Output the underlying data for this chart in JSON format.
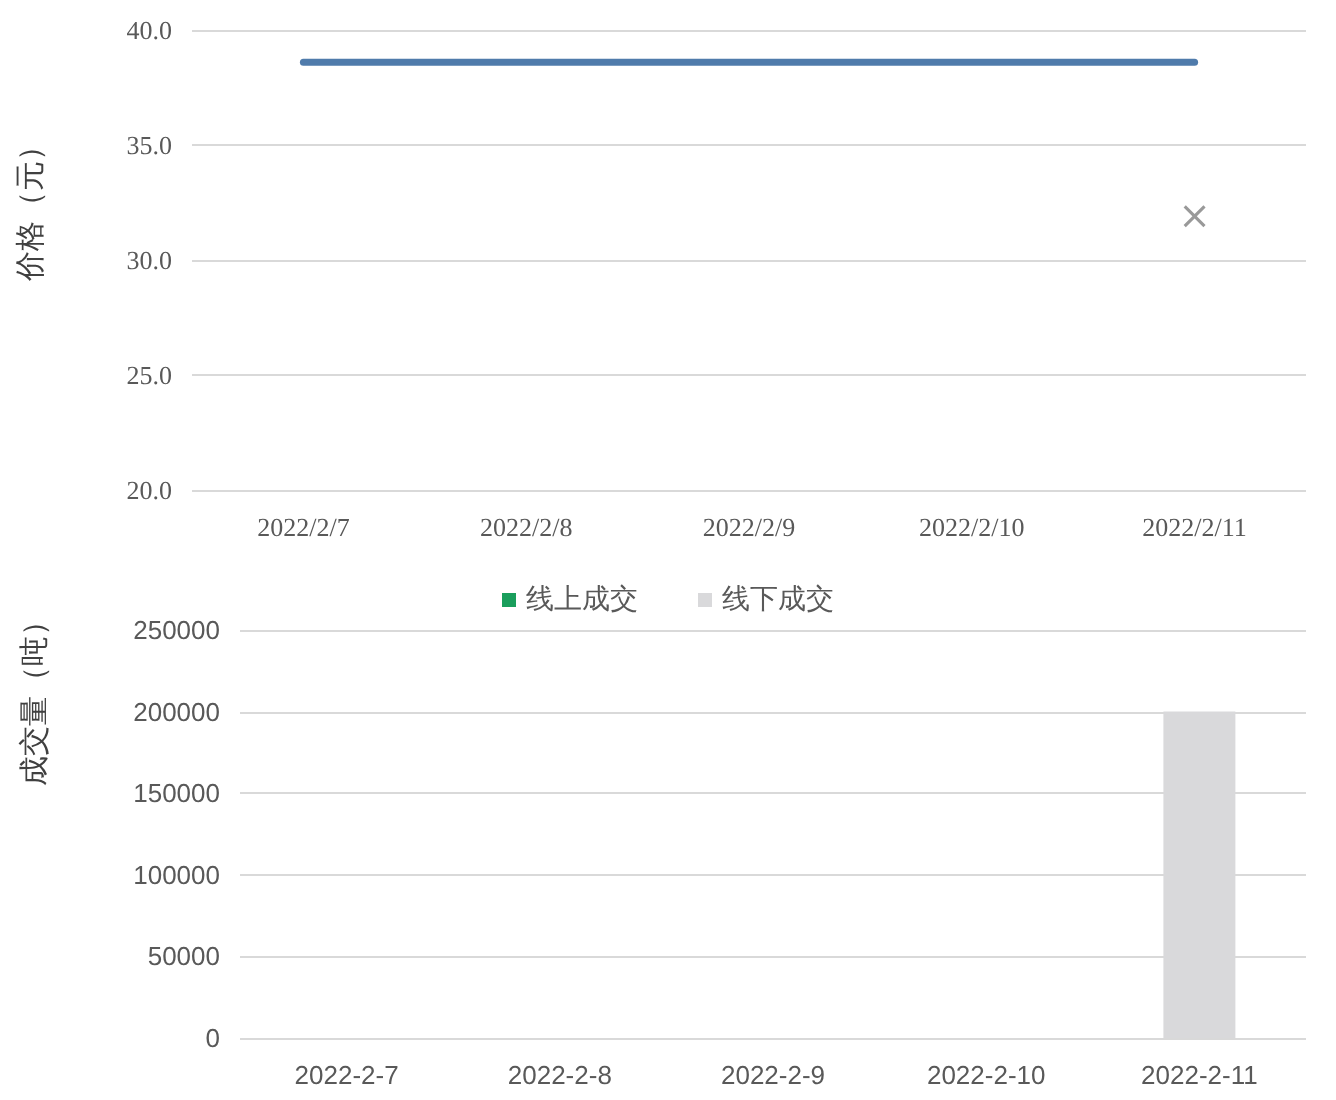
{
  "chart_data": [
    {
      "type": "line",
      "ylabel": "价格（元）",
      "categories": [
        "2022/2/7",
        "2022/2/8",
        "2022/2/9",
        "2022/2/10",
        "2022/2/11"
      ],
      "series": [
        {
          "color": "#4f7bab",
          "values": [
            38.6,
            38.6,
            38.6,
            38.6,
            38.6
          ],
          "marker": "none"
        },
        {
          "type": "scatter",
          "color": "#808080",
          "values": [
            null,
            null,
            null,
            null,
            31.9
          ],
          "marker": "cross"
        }
      ],
      "ylim": [
        20,
        40
      ],
      "yticks": [
        {
          "value": 20,
          "label": "20.0"
        },
        {
          "value": 25,
          "label": "25.0"
        },
        {
          "value": 30,
          "label": "30.0"
        },
        {
          "value": 35,
          "label": "35.0"
        },
        {
          "value": 40,
          "label": "40.0"
        }
      ],
      "grid": "y",
      "line_style": "solid"
    },
    {
      "type": "bar",
      "ylabel": "成交量（吨）",
      "categories": [
        "2022-2-7",
        "2022-2-8",
        "2022-2-9",
        "2022-2-10",
        "2022-2-11"
      ],
      "series": [
        {
          "name": "线上成交",
          "color": "#1a9e5c",
          "values": [
            null,
            null,
            null,
            null,
            null
          ]
        },
        {
          "name": "线下成交",
          "color": "#d9d9db",
          "values": [
            null,
            null,
            null,
            null,
            200000
          ]
        }
      ],
      "stacked": true,
      "ylim": [
        0,
        250000
      ],
      "yticks": [
        0,
        50000,
        100000,
        150000,
        200000,
        250000
      ],
      "grid": "y",
      "legend": "top"
    }
  ]
}
